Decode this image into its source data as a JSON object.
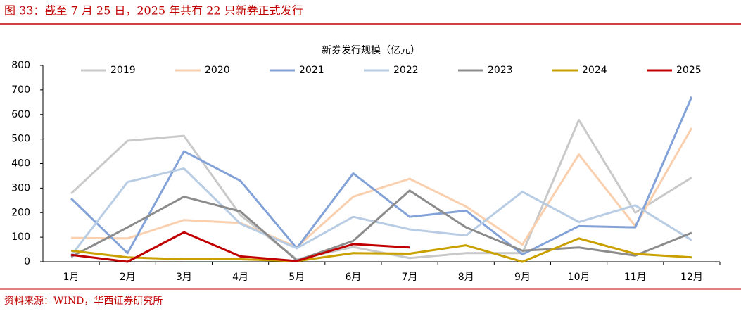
{
  "header": {
    "title": "图 33：截至 7 月 25 日，2025 年共有 22 只新券正式发行"
  },
  "chart_data": {
    "type": "line",
    "title": "新券发行规模（亿元）",
    "categories": [
      "1月",
      "2月",
      "3月",
      "4月",
      "5月",
      "6月",
      "7月",
      "8月",
      "9月",
      "10月",
      "11月",
      "12月"
    ],
    "series": [
      {
        "name": "2019",
        "color": "#c9c9c9",
        "values": [
          278,
          493,
          513,
          190,
          10,
          60,
          15,
          35,
          35,
          578,
          200,
          343
        ]
      },
      {
        "name": "2020",
        "color": "#f9cfae",
        "values": [
          97,
          95,
          170,
          158,
          60,
          265,
          338,
          225,
          70,
          437,
          145,
          545
        ]
      },
      {
        "name": "2021",
        "color": "#82a2d8",
        "values": [
          258,
          35,
          450,
          330,
          55,
          360,
          183,
          208,
          30,
          145,
          140,
          672
        ]
      },
      {
        "name": "2022",
        "color": "#b8cce4",
        "values": [
          25,
          325,
          380,
          155,
          55,
          183,
          132,
          107,
          285,
          162,
          230,
          88
        ]
      },
      {
        "name": "2023",
        "color": "#8c8c8c",
        "values": [
          20,
          140,
          265,
          205,
          5,
          85,
          290,
          140,
          45,
          58,
          25,
          118
        ]
      },
      {
        "name": "2024",
        "color": "#c9a000",
        "values": [
          45,
          18,
          10,
          10,
          3,
          35,
          33,
          67,
          0,
          95,
          32,
          18
        ]
      },
      {
        "name": "2025",
        "color": "#c00000",
        "values": [
          28,
          0,
          120,
          22,
          3,
          72,
          58,
          null,
          null,
          null,
          null,
          null
        ]
      }
    ],
    "ylim": [
      0,
      800
    ],
    "yticks": [
      0,
      100,
      200,
      300,
      400,
      500,
      600,
      700,
      800
    ],
    "grid": false,
    "legend": "top"
  },
  "footer": {
    "source": "资料来源：WIND，华西证券研究所"
  }
}
